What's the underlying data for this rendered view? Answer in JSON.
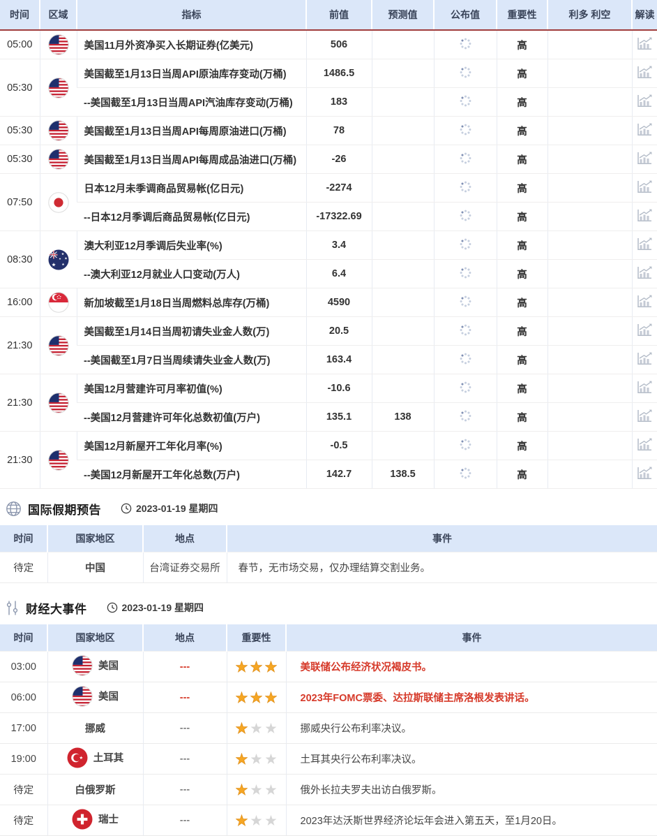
{
  "colors": {
    "header_bg": "#dbe7f9",
    "header_text": "#3a4459",
    "divider_red": "#a03d3d",
    "indicator_red": "#bd4030",
    "value_red": "#d63a2a",
    "star_gold": "#f6a623",
    "star_gray": "#d6d6d6",
    "flag_navy": "#1e2f6d"
  },
  "main_table": {
    "headers": [
      "时间",
      "区域",
      "指标",
      "前值",
      "预测值",
      "公布值",
      "重要性",
      "利多 利空",
      "解读"
    ],
    "importance_label": "高",
    "published_state": "loading-spinner",
    "interpret_icon": "chart-icon",
    "groups": [
      {
        "time": "05:00",
        "flag": "us",
        "rows": [
          {
            "indicator": "美国11月外资净买入长期证券(亿美元)",
            "prev": "506",
            "forecast": "",
            "importance": "高"
          }
        ]
      },
      {
        "time": "05:30",
        "flag": "us",
        "rows": [
          {
            "indicator": "美国截至1月13日当周API原油库存变动(万桶)",
            "prev": "1486.5",
            "forecast": "",
            "importance": "高"
          },
          {
            "indicator": "--美国截至1月13日当周API汽油库存变动(万桶)",
            "prev": "183",
            "forecast": "",
            "importance": "高"
          }
        ]
      },
      {
        "time": "05:30",
        "flag": "us",
        "rows": [
          {
            "indicator": "美国截至1月13日当周API每周原油进口(万桶)",
            "prev": "78",
            "forecast": "",
            "importance": "高"
          }
        ]
      },
      {
        "time": "05:30",
        "flag": "us",
        "rows": [
          {
            "indicator": "美国截至1月13日当周API每周成品油进口(万桶)",
            "prev": "-26",
            "forecast": "",
            "importance": "高"
          }
        ]
      },
      {
        "time": "07:50",
        "flag": "jp",
        "rows": [
          {
            "indicator": "日本12月未季调商品贸易帐(亿日元)",
            "prev": "-2274",
            "forecast": "",
            "importance": "高"
          },
          {
            "indicator": "--日本12月季调后商品贸易帐(亿日元)",
            "prev": "-17322.69",
            "forecast": "",
            "importance": "高"
          }
        ]
      },
      {
        "time": "08:30",
        "flag": "au",
        "rows": [
          {
            "indicator": "澳大利亚12月季调后失业率(%)",
            "prev": "3.4",
            "forecast": "",
            "importance": "高"
          },
          {
            "indicator": "--澳大利亚12月就业人口变动(万人)",
            "prev": "6.4",
            "forecast": "",
            "importance": "高"
          }
        ]
      },
      {
        "time": "16:00",
        "flag": "sg",
        "rows": [
          {
            "indicator": "新加坡截至1月18日当周燃料总库存(万桶)",
            "prev": "4590",
            "forecast": "",
            "importance": "高"
          }
        ]
      },
      {
        "time": "21:30",
        "flag": "us",
        "rows": [
          {
            "indicator": "美国截至1月14日当周初请失业金人数(万)",
            "prev": "20.5",
            "forecast": "",
            "importance": "高"
          },
          {
            "indicator": "--美国截至1月7日当周续请失业金人数(万)",
            "prev": "163.4",
            "forecast": "",
            "importance": "高"
          }
        ]
      },
      {
        "time": "21:30",
        "flag": "us",
        "rows": [
          {
            "indicator": "美国12月营建许可月率初值(%)",
            "prev": "-10.6",
            "forecast": "",
            "importance": "高"
          },
          {
            "indicator": "--美国12月营建许可年化总数初值(万户)",
            "prev": "135.1",
            "forecast": "138",
            "importance": "高"
          }
        ]
      },
      {
        "time": "21:30",
        "flag": "us",
        "rows": [
          {
            "indicator": "美国12月新屋开工年化月率(%)",
            "prev": "-0.5",
            "forecast": "",
            "importance": "高"
          },
          {
            "indicator": "--美国12月新屋开工年化总数(万户)",
            "prev": "142.7",
            "forecast": "138.5",
            "importance": "高"
          }
        ]
      }
    ]
  },
  "holiday_section": {
    "title": "国际假期预告",
    "date": "2023-01-19 星期四",
    "headers": [
      "时间",
      "国家地区",
      "地点",
      "事件"
    ],
    "rows": [
      {
        "time": "待定",
        "country": "中国",
        "location": "台湾证券交易所",
        "event": "春节，无市场交易，仅办理结算交割业务。"
      }
    ]
  },
  "events_section": {
    "title": "财经大事件",
    "date": "2023-01-19 星期四",
    "headers": [
      "时间",
      "国家地区",
      "地点",
      "重要性",
      "事件"
    ],
    "max_stars": 3,
    "rows": [
      {
        "time": "03:00",
        "country": "美国",
        "flag": "us",
        "location": "---",
        "stars": 3,
        "event": "美联储公布经济状况褐皮书。",
        "highlight": true
      },
      {
        "time": "06:00",
        "country": "美国",
        "flag": "us",
        "location": "---",
        "stars": 3,
        "event": "2023年FOMC票委、达拉斯联储主席洛根发表讲话。",
        "highlight": true
      },
      {
        "time": "17:00",
        "country": "挪威",
        "flag": null,
        "location": "---",
        "stars": 1,
        "event": "挪威央行公布利率决议。",
        "highlight": false
      },
      {
        "time": "19:00",
        "country": "土耳其",
        "flag": "tr",
        "location": "---",
        "stars": 1,
        "event": "土耳其央行公布利率决议。",
        "highlight": false
      },
      {
        "time": "待定",
        "country": "白俄罗斯",
        "flag": null,
        "location": "---",
        "stars": 1,
        "event": "俄外长拉夫罗夫出访白俄罗斯。",
        "highlight": false
      },
      {
        "time": "待定",
        "country": "瑞士",
        "flag": "ch",
        "location": "---",
        "stars": 1,
        "event": "2023年达沃斯世界经济论坛年会进入第五天，至1月20日。",
        "highlight": false
      }
    ]
  }
}
